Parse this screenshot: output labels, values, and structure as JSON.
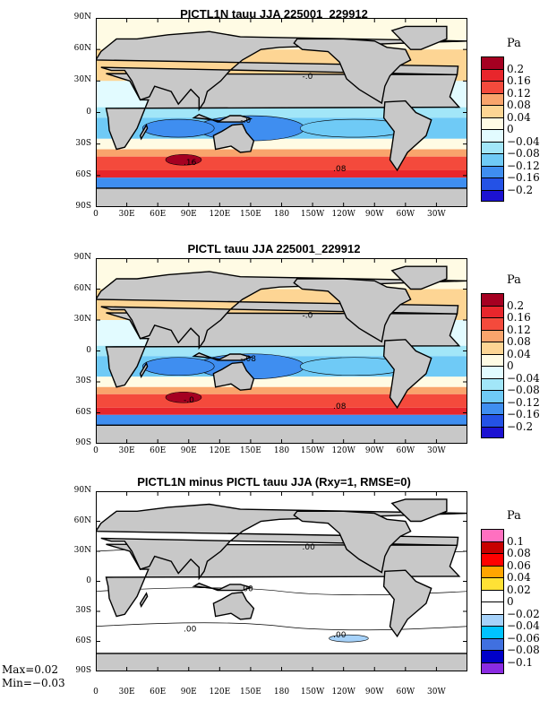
{
  "panels": [
    {
      "title": "PICTL1N tauu JJA 225001_229912",
      "unit": "Pa",
      "levels": [
        "0.2",
        "0.16",
        "0.12",
        "0.08",
        "0.04",
        "0",
        "−0.04",
        "−0.08",
        "−0.12",
        "−0.16",
        "−0.2"
      ],
      "colors": [
        "#a50021",
        "#e8262c",
        "#f44a3c",
        "#f9a46c",
        "#fdd594",
        "#fffbe4",
        "#e2fbff",
        "#a2e6f8",
        "#6fcaf6",
        "#3f8ef0",
        "#2452e6",
        "#1c12d2"
      ],
      "contour_labels": [
        "-.0",
        "-.0",
        ".16",
        ".08"
      ]
    },
    {
      "title": "PICTL tauu JJA 225001_229912",
      "unit": "Pa",
      "levels": [
        "0.2",
        "0.16",
        "0.12",
        "0.08",
        "0.04",
        "0",
        "−0.04",
        "−0.08",
        "−0.12",
        "−0.16",
        "−0.2"
      ],
      "colors": [
        "#a50021",
        "#e8262c",
        "#f44a3c",
        "#f9a46c",
        "#fdd594",
        "#fffbe4",
        "#e2fbff",
        "#a2e6f8",
        "#6fcaf6",
        "#3f8ef0",
        "#2452e6",
        "#1c12d2"
      ],
      "contour_labels": [
        "-.0",
        "-.08",
        "-.0",
        ".08"
      ]
    },
    {
      "title": "PICTL1N minus PICTL tauu JJA (Rxy=1, RMSE=0)",
      "unit": "Pa",
      "levels": [
        "0.1",
        "0.08",
        "0.06",
        "0.04",
        "0.02",
        "0",
        "−0.02",
        "−0.04",
        "−0.06",
        "−0.08",
        "−0.1"
      ],
      "colors": [
        "#ff70c0",
        "#c80000",
        "#ff0000",
        "#ffa500",
        "#ffe135",
        "#ffffff",
        "#ffffff",
        "#a6d2fa",
        "#00c3ff",
        "#4070e0",
        "#0000c8",
        "#8a2be2"
      ],
      "contour_labels": [
        ".00",
        ".00",
        ".00",
        ".00"
      ]
    }
  ],
  "lat_labels": [
    "90N",
    "60N",
    "30N",
    "0",
    "30S",
    "60S",
    "90S"
  ],
  "lon_labels": [
    "0",
    "30E",
    "60E",
    "90E",
    "120E",
    "150E",
    "180",
    "150W",
    "120W",
    "90W",
    "60W",
    "30W"
  ],
  "stats": {
    "max": "Max=0.02",
    "min": "Min=−0.03"
  },
  "land_color": "#c8c8c8"
}
